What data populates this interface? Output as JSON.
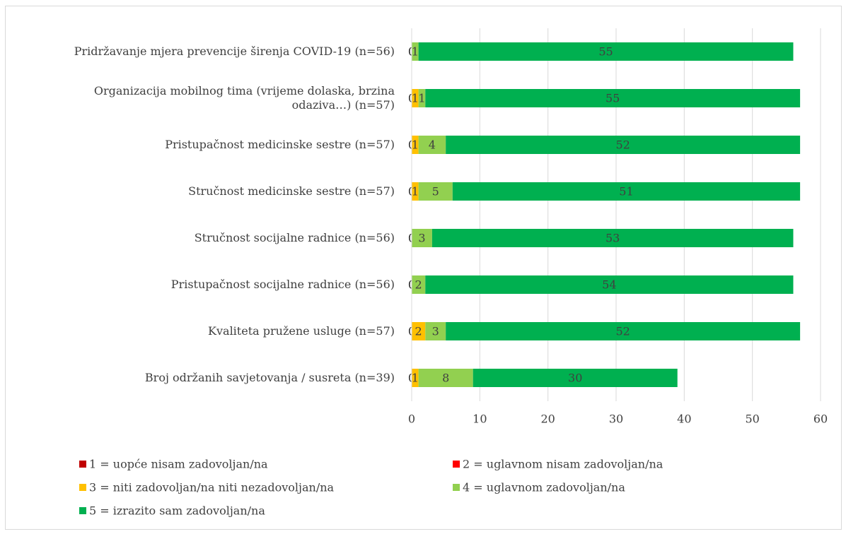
{
  "chart_data": {
    "type": "stacked_barh",
    "categories": [
      "Pridržavanje mjera prevencije širenja COVID-19 (n=56)",
      "Organizacija mobilnog tima (vrijeme dolaska, brzina odaziva…) (n=57)",
      "Pristupačnost medicinske sestre (n=57)",
      "Stručnost medicinske sestre (n=57)",
      "Stručnost socijalne radnice (n=56)",
      "Pristupačnost socijalne radnice (n=56)",
      "Kvaliteta pružene usluge (n=57)",
      "Broj održanih savjetovanja / susreta (n=39)"
    ],
    "series": [
      {
        "name": "1 = uopće nisam zadovoljan/na",
        "color": "#c00000",
        "values": [
          0,
          0,
          0,
          0,
          0,
          0,
          0,
          0
        ]
      },
      {
        "name": "2 = uglavnom nisam zadovoljan/na",
        "color": "#ff0000",
        "values": [
          0,
          0,
          0,
          0,
          0,
          0,
          0,
          0
        ]
      },
      {
        "name": "3 = niti zadovoljan/na niti nezadovoljan/na",
        "color": "#ffc000",
        "values": [
          0,
          1,
          1,
          1,
          0,
          0,
          2,
          1
        ]
      },
      {
        "name": "4 = uglavnom zadovoljan/na",
        "color": "#92d050",
        "values": [
          1,
          1,
          4,
          5,
          3,
          2,
          3,
          8
        ]
      },
      {
        "name": "5 = izrazito sam zadovoljan/na",
        "color": "#00b050",
        "values": [
          55,
          55,
          52,
          51,
          53,
          54,
          52,
          30
        ]
      }
    ],
    "xlim": [
      0,
      60
    ],
    "xticks": [
      0,
      10,
      20,
      30,
      40,
      50,
      60
    ],
    "grid": true
  }
}
